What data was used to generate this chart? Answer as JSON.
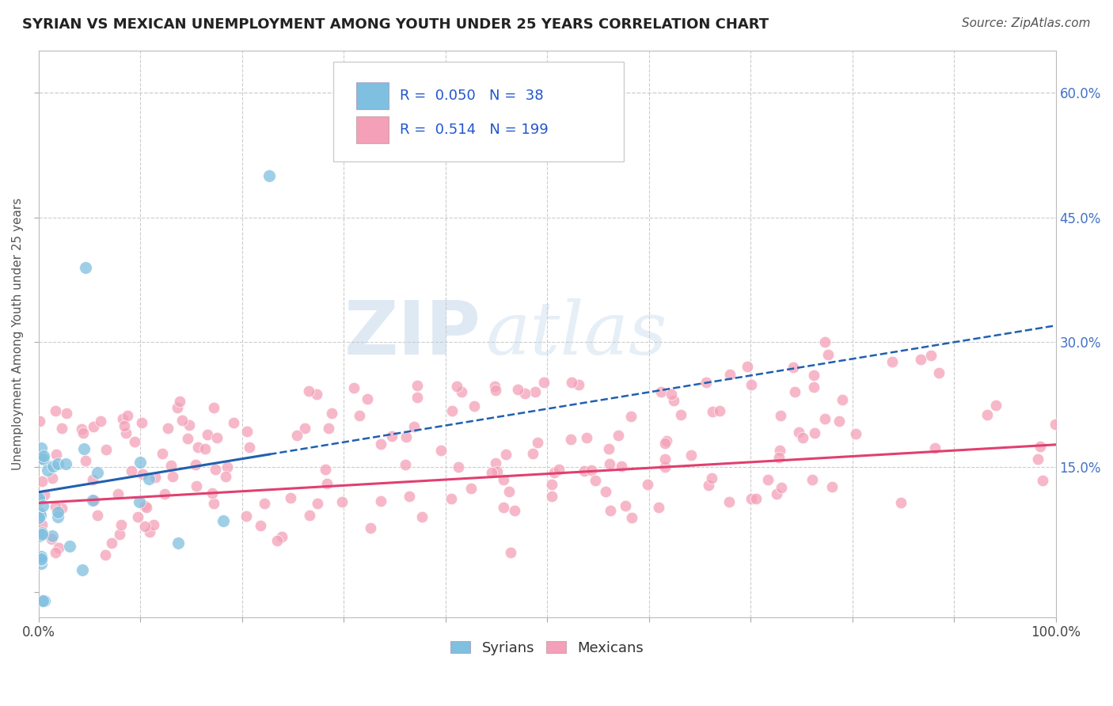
{
  "title": "SYRIAN VS MEXICAN UNEMPLOYMENT AMONG YOUTH UNDER 25 YEARS CORRELATION CHART",
  "source": "Source: ZipAtlas.com",
  "ylabel": "Unemployment Among Youth under 25 years",
  "xlim": [
    0,
    1.0
  ],
  "ylim": [
    -0.03,
    0.65
  ],
  "syrian_color": "#7fbfdf",
  "mexican_color": "#f4a0b8",
  "syrian_line_color": "#2060b0",
  "mexican_line_color": "#e04070",
  "R_syrian": 0.05,
  "N_syrian": 38,
  "R_mexican": 0.514,
  "N_mexican": 199,
  "watermark_zip": "ZIP",
  "watermark_atlas": "atlas",
  "background_color": "#ffffff",
  "grid_color": "#cccccc",
  "title_fontsize": 13,
  "source_fontsize": 11,
  "axis_label_fontsize": 11,
  "tick_fontsize": 12,
  "legend_fontsize": 13,
  "right_ytick_color": "#4472c6"
}
